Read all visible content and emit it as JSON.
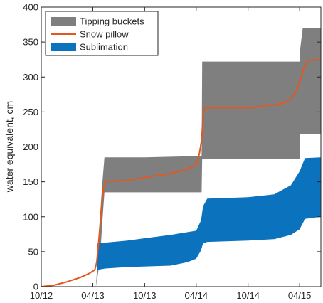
{
  "chart_data": {
    "type": "area",
    "xlabel": "",
    "ylabel": "water equivalent, cm",
    "xlim": [
      "2012-10-01",
      "2015-06-15"
    ],
    "ylim": [
      0,
      400
    ],
    "x_ticks": [
      "10/12",
      "04/13",
      "10/13",
      "04/14",
      "10/14",
      "04/15"
    ],
    "y_ticks": [
      0,
      50,
      100,
      150,
      200,
      250,
      300,
      350,
      400
    ],
    "grid": false,
    "legend_position": "top-left",
    "legend": [
      {
        "label": "Tipping buckets",
        "color": "#7f7f7f",
        "kind": "band"
      },
      {
        "label": "Snow pillow",
        "color": "#e4571e",
        "kind": "line"
      },
      {
        "label": "Sublimation",
        "color": "#0b72bd",
        "kind": "band"
      }
    ],
    "series": [
      {
        "name": "Tipping buckets",
        "kind": "band",
        "color": "#7f7f7f",
        "points": [
          {
            "x": "2013-04-12",
            "low": 0,
            "high": 0
          },
          {
            "x": "2013-04-20",
            "low": 20,
            "high": 50
          },
          {
            "x": "2013-04-28",
            "low": 50,
            "high": 110
          },
          {
            "x": "2013-05-05",
            "low": 95,
            "high": 150
          },
          {
            "x": "2013-05-12",
            "low": 135,
            "high": 185
          },
          {
            "x": "2013-10-01",
            "low": 135,
            "high": 185
          },
          {
            "x": "2014-04-20",
            "low": 135,
            "high": 187
          },
          {
            "x": "2014-04-22",
            "low": 183,
            "high": 322
          },
          {
            "x": "2015-04-01",
            "low": 183,
            "high": 322
          },
          {
            "x": "2015-04-03",
            "low": 218,
            "high": 340
          },
          {
            "x": "2015-04-12",
            "low": 218,
            "high": 370
          },
          {
            "x": "2015-06-15",
            "low": 218,
            "high": 370
          }
        ]
      },
      {
        "name": "Snow pillow",
        "kind": "line",
        "color": "#e4571e",
        "points": [
          {
            "x": "2012-10-01",
            "y": 0
          },
          {
            "x": "2012-11-15",
            "y": 2
          },
          {
            "x": "2013-01-01",
            "y": 7
          },
          {
            "x": "2013-02-15",
            "y": 13
          },
          {
            "x": "2013-03-20",
            "y": 19
          },
          {
            "x": "2013-04-08",
            "y": 24
          },
          {
            "x": "2013-04-15",
            "y": 35
          },
          {
            "x": "2013-04-22",
            "y": 65
          },
          {
            "x": "2013-05-01",
            "y": 110
          },
          {
            "x": "2013-05-08",
            "y": 140
          },
          {
            "x": "2013-05-15",
            "y": 151
          },
          {
            "x": "2013-08-01",
            "y": 152
          },
          {
            "x": "2013-10-15",
            "y": 157
          },
          {
            "x": "2014-01-01",
            "y": 162
          },
          {
            "x": "2014-03-01",
            "y": 168
          },
          {
            "x": "2014-04-01",
            "y": 175
          },
          {
            "x": "2014-04-12",
            "y": 190
          },
          {
            "x": "2014-04-20",
            "y": 210
          },
          {
            "x": "2014-04-26",
            "y": 248
          },
          {
            "x": "2014-05-01",
            "y": 256
          },
          {
            "x": "2014-10-15",
            "y": 256
          },
          {
            "x": "2014-12-01",
            "y": 259
          },
          {
            "x": "2015-02-01",
            "y": 262
          },
          {
            "x": "2015-03-01",
            "y": 268
          },
          {
            "x": "2015-03-20",
            "y": 280
          },
          {
            "x": "2015-04-05",
            "y": 298
          },
          {
            "x": "2015-04-15",
            "y": 312
          },
          {
            "x": "2015-05-01",
            "y": 324
          },
          {
            "x": "2015-06-15",
            "y": 325
          }
        ]
      },
      {
        "name": "Sublimation",
        "kind": "band",
        "color": "#0b72bd",
        "points": [
          {
            "x": "2013-04-15",
            "low": 20,
            "high": 45
          },
          {
            "x": "2013-04-18",
            "low": 24,
            "high": 62
          },
          {
            "x": "2013-05-15",
            "low": 26,
            "high": 63
          },
          {
            "x": "2013-08-01",
            "low": 28,
            "high": 66
          },
          {
            "x": "2013-10-15",
            "low": 29,
            "high": 70
          },
          {
            "x": "2014-01-01",
            "low": 30,
            "high": 74
          },
          {
            "x": "2014-03-01",
            "low": 35,
            "high": 78
          },
          {
            "x": "2014-04-01",
            "low": 40,
            "high": 80
          },
          {
            "x": "2014-04-18",
            "low": 52,
            "high": 95
          },
          {
            "x": "2014-04-25",
            "low": 62,
            "high": 115
          },
          {
            "x": "2014-05-10",
            "low": 64,
            "high": 126
          },
          {
            "x": "2014-10-01",
            "low": 66,
            "high": 128
          },
          {
            "x": "2015-01-01",
            "low": 68,
            "high": 132
          },
          {
            "x": "2015-03-01",
            "low": 74,
            "high": 145
          },
          {
            "x": "2015-04-01",
            "low": 82,
            "high": 165
          },
          {
            "x": "2015-04-20",
            "low": 97,
            "high": 184
          },
          {
            "x": "2015-06-15",
            "low": 100,
            "high": 185
          }
        ]
      }
    ]
  }
}
